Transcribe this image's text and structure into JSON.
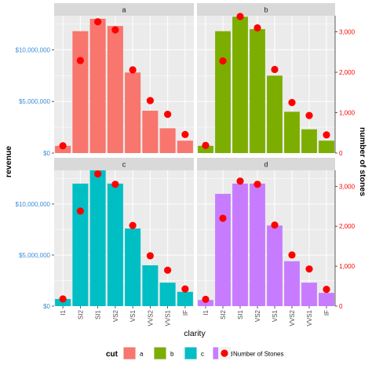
{
  "chart_data": {
    "type": "bar",
    "facets": [
      "a",
      "b",
      "c",
      "d"
    ],
    "categories": [
      "I1",
      "SI2",
      "SI1",
      "VS2",
      "VS1",
      "VVS2",
      "VVS1",
      "IF"
    ],
    "series": [
      {
        "name": "a",
        "cut": "a",
        "color": "#F8766D",
        "revenue": [
          700000,
          11800000,
          13000000,
          12300000,
          7800000,
          4100000,
          2400000,
          1200000
        ],
        "stones": [
          180,
          2290,
          3250,
          3050,
          2060,
          1300,
          960,
          460
        ]
      },
      {
        "name": "b",
        "cut": "b",
        "color": "#7CAE00",
        "revenue": [
          700000,
          11800000,
          13200000,
          12000000,
          7500000,
          4000000,
          2300000,
          1200000
        ],
        "stones": [
          190,
          2280,
          3400,
          3100,
          2070,
          1250,
          930,
          450
        ]
      },
      {
        "name": "c",
        "cut": "c",
        "color": "#00BFC4",
        "revenue": [
          700000,
          12000000,
          13300000,
          12000000,
          7600000,
          4000000,
          2300000,
          1400000
        ],
        "stones": [
          180,
          2380,
          3310,
          3050,
          2020,
          1260,
          900,
          430
        ]
      },
      {
        "name": "d",
        "cut": "d",
        "color": "#C77CFF",
        "revenue": [
          600000,
          11000000,
          12000000,
          12000000,
          7900000,
          4400000,
          2300000,
          1300000
        ],
        "stones": [
          170,
          2200,
          3130,
          3050,
          2030,
          1280,
          930,
          420
        ]
      }
    ],
    "xlabel": "clarity",
    "ylabel": "revenue",
    "y2label": "number of stones",
    "ylim": [
      0,
      13300000
    ],
    "y2lim": [
      0,
      3400
    ],
    "y_ticks": [
      0,
      5000000,
      10000000
    ],
    "y_tick_labels": [
      "$0",
      "$5,000,000",
      "$10,000,000"
    ],
    "y2_ticks": [
      0,
      1000,
      2000,
      3000
    ],
    "y2_tick_labels": [
      "0",
      "1,000",
      "2,000",
      "3,000"
    ],
    "legend": {
      "placement": "bottom",
      "title": "cut",
      "items": [
        "a",
        "b",
        "c",
        "d"
      ],
      "points_label": "Number of Stones"
    },
    "colors": {
      "panel_bg": "#EBEBEB",
      "strip_bg": "#D9D9D9",
      "grid": "#FFFFFF",
      "point": "#FF0000",
      "left_axis_text": "#3C8DD6",
      "right_axis_text": "#FF0000"
    }
  }
}
